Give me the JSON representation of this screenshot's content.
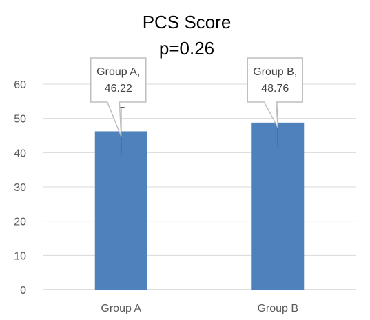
{
  "chart_data": {
    "type": "bar",
    "title": "PCS Score",
    "subtitle": "p=0.26",
    "categories": [
      "Group A",
      "Group B"
    ],
    "series": [
      {
        "values": [
          46.22,
          48.76
        ],
        "error_plus": [
          7,
          7
        ],
        "error_minus": [
          7,
          7
        ]
      }
    ],
    "data_labels": [
      [
        "Group A,",
        "46.22"
      ],
      [
        "Group B,",
        "48.76"
      ]
    ],
    "ylim": [
      0,
      60
    ],
    "yticks": [
      0,
      10,
      20,
      30,
      40,
      50,
      60
    ],
    "xlabel": "",
    "ylabel": "",
    "grid": true,
    "legend": "none",
    "colors": {
      "bar": "#4F81BD",
      "grid": "#D9D9D9",
      "axis": "#BFBFBF",
      "error_bar": "#404040",
      "callout_border": "#BFBFBF"
    }
  }
}
